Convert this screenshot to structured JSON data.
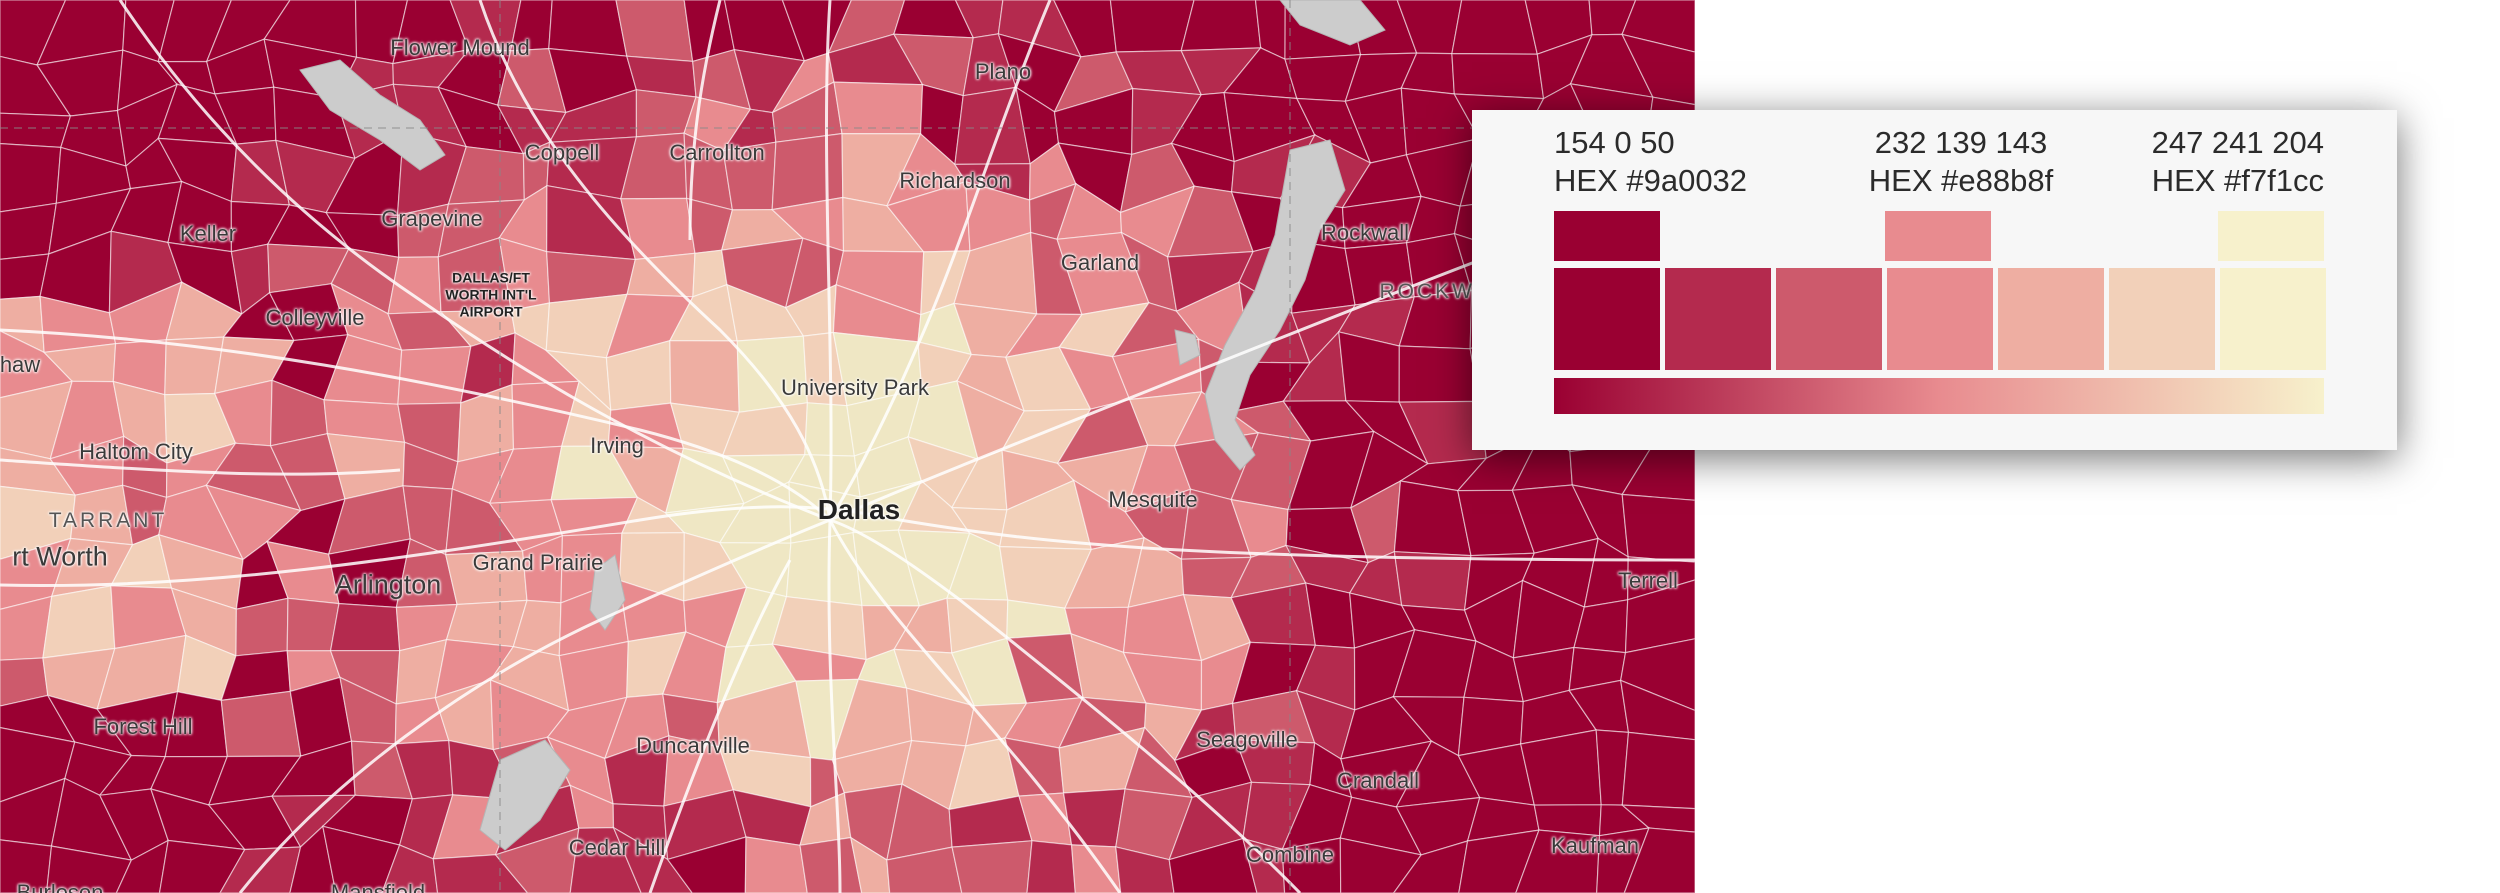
{
  "map": {
    "places": [
      {
        "name": "Flower Mound",
        "kind": "city"
      },
      {
        "name": "Plano",
        "kind": "city"
      },
      {
        "name": "Coppell",
        "kind": "city"
      },
      {
        "name": "Carrollton",
        "kind": "city"
      },
      {
        "name": "Richardson",
        "kind": "city"
      },
      {
        "name": "Grapevine",
        "kind": "city"
      },
      {
        "name": "Keller",
        "kind": "city"
      },
      {
        "name": "Garland",
        "kind": "city"
      },
      {
        "name": "Rockwall",
        "kind": "city"
      },
      {
        "name": "Colleyville",
        "kind": "city"
      },
      {
        "name": "haw",
        "kind": "city"
      },
      {
        "name": "University Park",
        "kind": "city"
      },
      {
        "name": "Irving",
        "kind": "city"
      },
      {
        "name": "Haltom City",
        "kind": "city"
      },
      {
        "name": "Dallas",
        "kind": "major"
      },
      {
        "name": "Mesquite",
        "kind": "city"
      },
      {
        "name": "rt Worth",
        "kind": "mid"
      },
      {
        "name": "Arlington",
        "kind": "mid"
      },
      {
        "name": "Grand Prairie",
        "kind": "city"
      },
      {
        "name": "Terrell",
        "kind": "city"
      },
      {
        "name": "Forest Hill",
        "kind": "city"
      },
      {
        "name": "Duncanville",
        "kind": "city"
      },
      {
        "name": "Seagoville",
        "kind": "city"
      },
      {
        "name": "Crandall",
        "kind": "city"
      },
      {
        "name": "Cedar Hill",
        "kind": "city"
      },
      {
        "name": "Kaufman",
        "kind": "city"
      },
      {
        "name": "Combine",
        "kind": "city"
      },
      {
        "name": "Burleson",
        "kind": "city"
      },
      {
        "name": "Mansfield",
        "kind": "city"
      }
    ],
    "counties": [
      "TARRANT",
      "ROCKWALL"
    ],
    "airport": "DALLAS/FT\nWORTH INT'L\nAIRPORT"
  },
  "legend": {
    "swatches": [
      {
        "rgb": "154  0  50",
        "hex": "HEX #9a0032",
        "color": "#9a0032"
      },
      {
        "rgb": "232  139  143",
        "hex": "HEX #e88b8f",
        "color": "#e88b8f"
      },
      {
        "rgb": "247  241  204",
        "hex": "HEX #f7f1cc",
        "color": "#f7f1cc"
      }
    ],
    "ramp": [
      "#9a0032",
      "#b42a4e",
      "#cd5a6c",
      "#e88b8f",
      "#eeaea2",
      "#f2d0b9",
      "#f7f1cc"
    ]
  }
}
